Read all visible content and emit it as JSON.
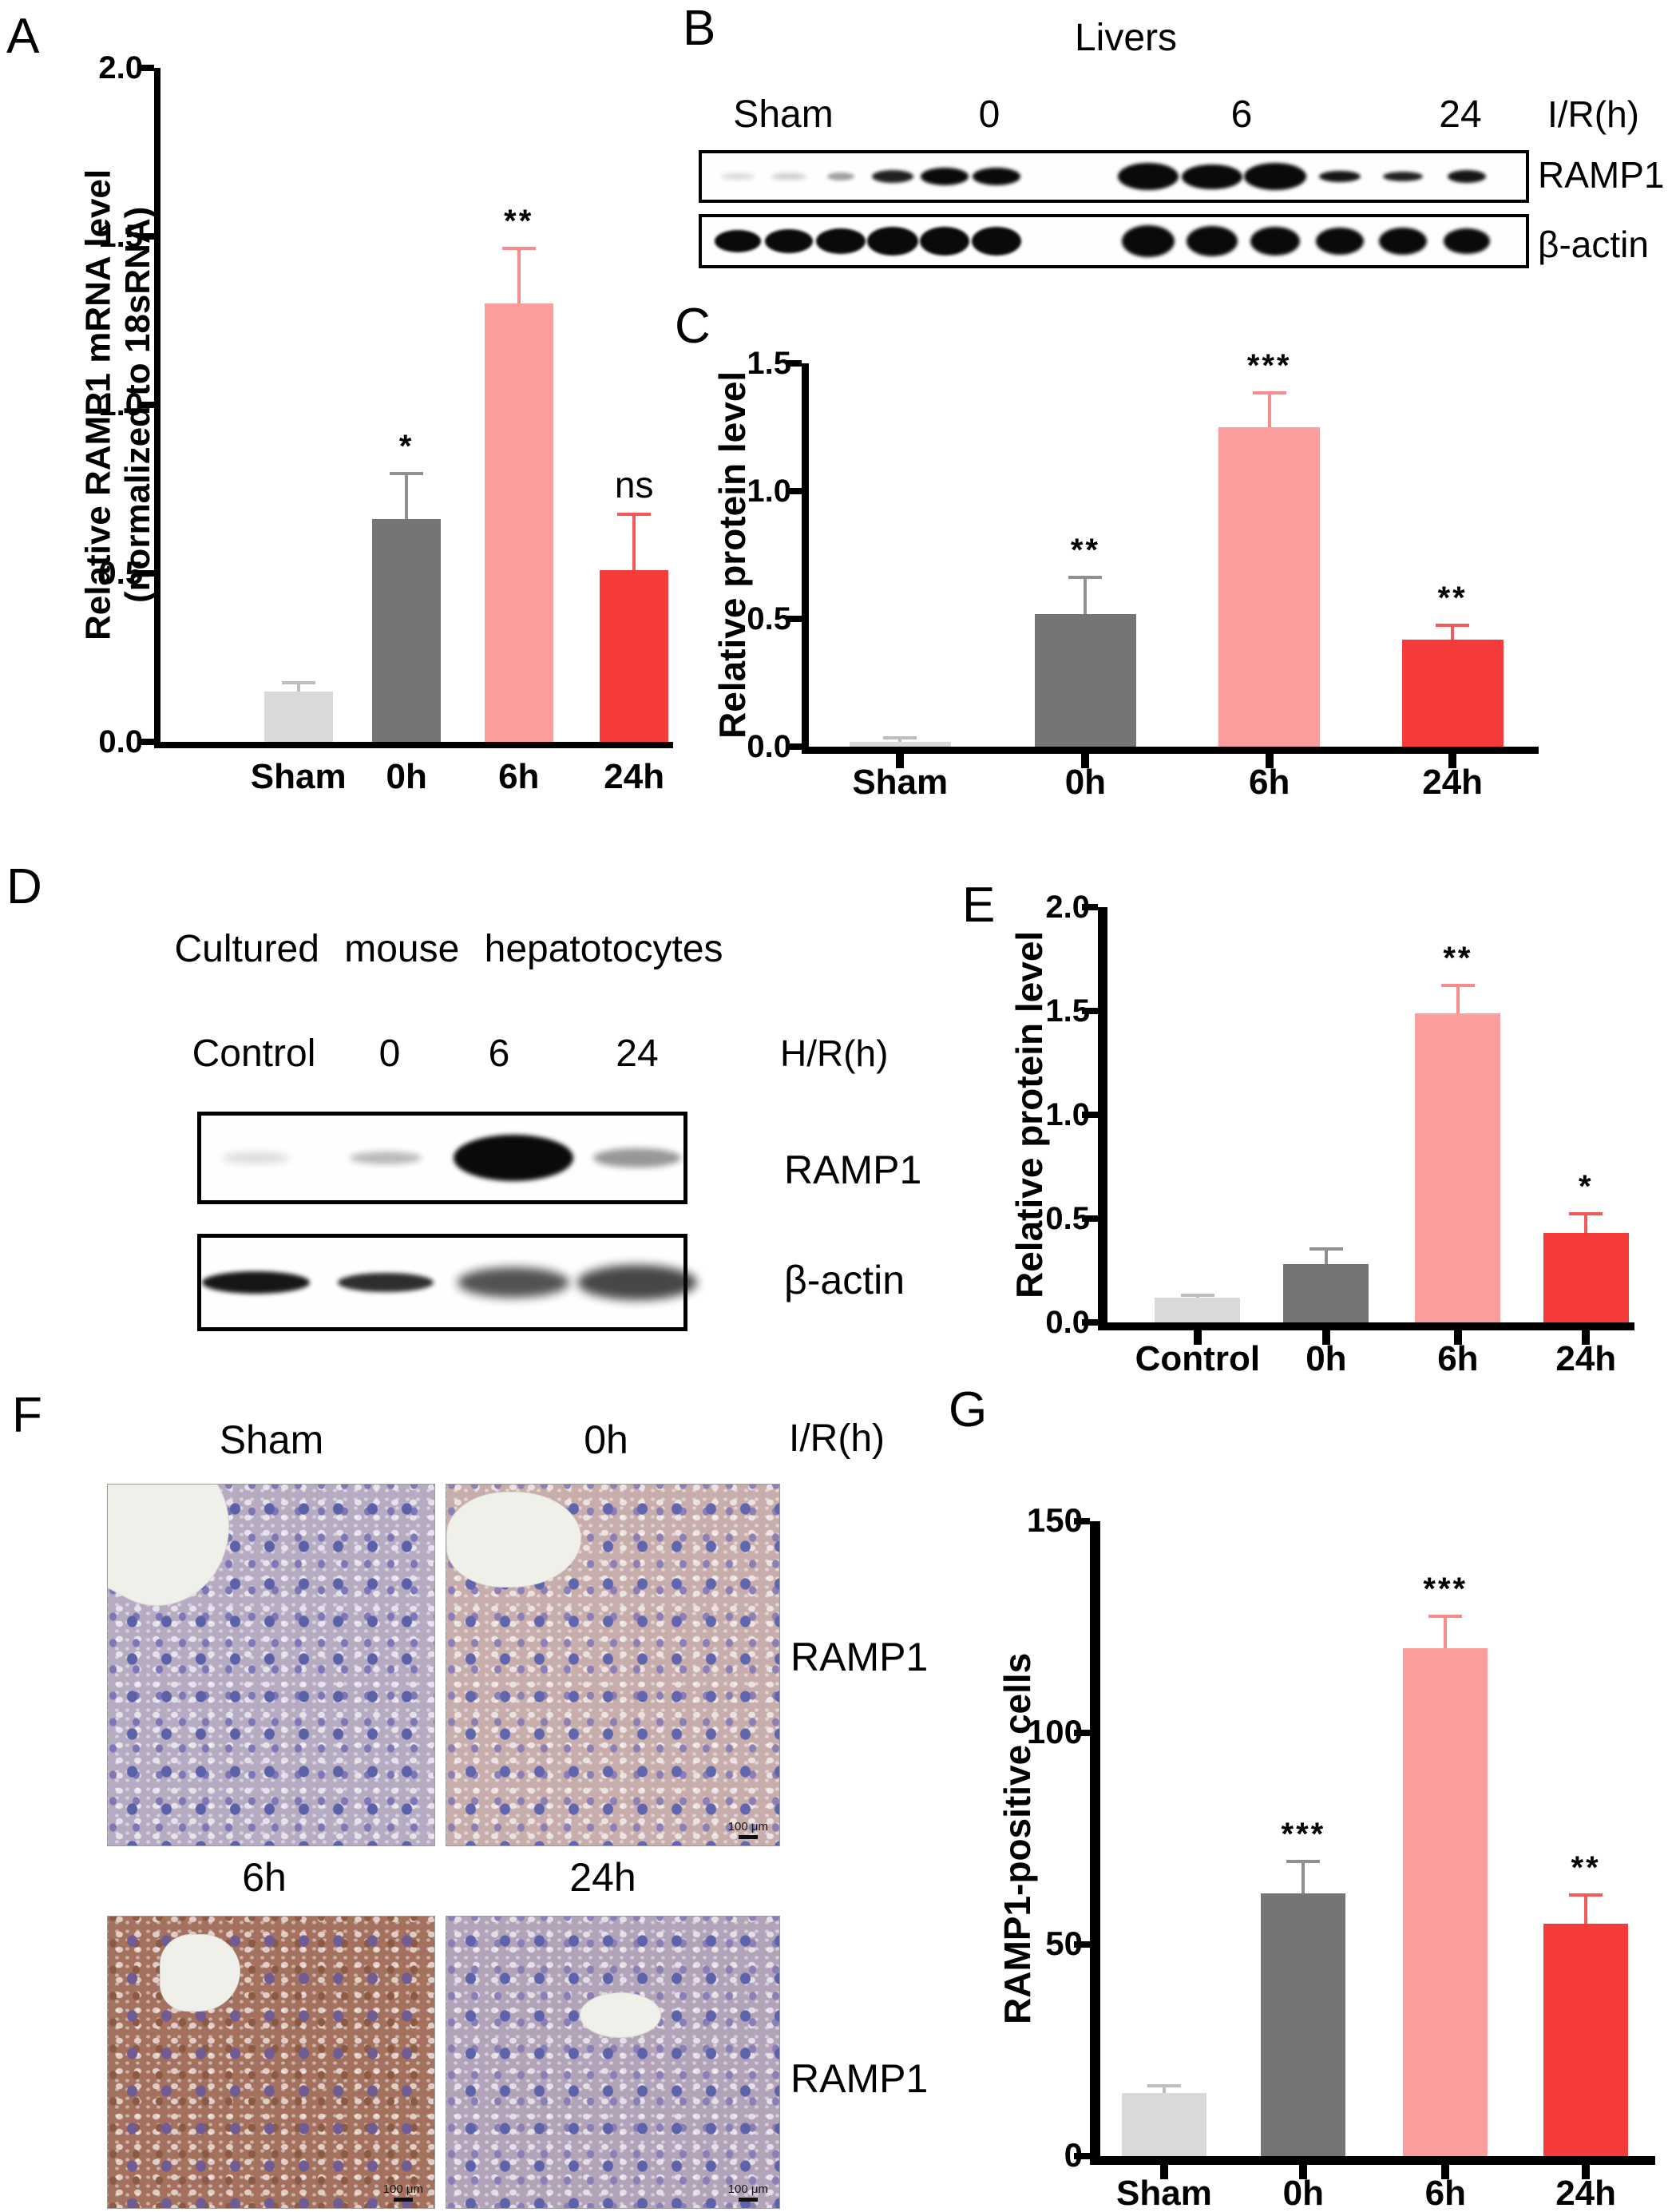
{
  "panels": {
    "A": "A",
    "B": "B",
    "C": "C",
    "D": "D",
    "E": "E",
    "F": "F",
    "G": "G"
  },
  "chart_data": [
    {
      "id": "A",
      "type": "bar",
      "ylabel": "Relative RAMP1 mRNA level\n(normalized to 18sRNA)",
      "ymax": 2.0,
      "ylim": [
        0,
        2.0
      ],
      "yticks": [
        "0.0",
        "0.5",
        "1.0",
        "1.5",
        "2.0"
      ],
      "categories": [
        "Sham",
        "0h",
        "6h",
        "24h"
      ],
      "values": [
        0.15,
        0.66,
        1.3,
        0.51
      ],
      "errors": [
        0.03,
        0.14,
        0.17,
        0.17
      ],
      "sig": [
        "",
        "*",
        "**",
        "ns"
      ],
      "colors": [
        "#d9d9d9",
        "#757575",
        "#fa9e9e",
        "#f63b3b"
      ],
      "err_colors": [
        "#bdbdbd",
        "#8f8f8f",
        "#f88b8b",
        "#f4595a"
      ],
      "grid": false,
      "legend": false
    },
    {
      "id": "C",
      "type": "bar",
      "ylabel": "Relative protein level",
      "ymax": 1.5,
      "ylim": [
        0,
        1.5
      ],
      "yticks": [
        "0.0",
        "0.5",
        "1.0",
        "1.5"
      ],
      "categories": [
        "Sham",
        "0h",
        "6h",
        "24h"
      ],
      "values": [
        0.02,
        0.52,
        1.25,
        0.42
      ],
      "errors": [
        0.02,
        0.15,
        0.14,
        0.06
      ],
      "sig": [
        "",
        "**",
        "***",
        "**"
      ],
      "colors": [
        "#d9d9d9",
        "#757575",
        "#fa9e9e",
        "#f63b3b"
      ],
      "err_colors": [
        "#bdbdbd",
        "#8f8f8f",
        "#f88b8b",
        "#f4595a"
      ],
      "grid": false,
      "legend": false
    },
    {
      "id": "E",
      "type": "bar",
      "ylabel": "Relative protein level",
      "ymax": 2.0,
      "ylim": [
        0,
        2.0
      ],
      "yticks": [
        "0.0",
        "0.5",
        "1.0",
        "1.5",
        "2.0"
      ],
      "categories": [
        "Control",
        "0h",
        "6h",
        "24h"
      ],
      "values": [
        0.12,
        0.28,
        1.49,
        0.43
      ],
      "errors": [
        0.02,
        0.08,
        0.14,
        0.1
      ],
      "sig": [
        "",
        "",
        "**",
        "*"
      ],
      "colors": [
        "#d9d9d9",
        "#757575",
        "#fa9e9e",
        "#f63b3b"
      ],
      "err_colors": [
        "#bdbdbd",
        "#8f8f8f",
        "#f88b8b",
        "#f4595a"
      ],
      "grid": false,
      "legend": false
    },
    {
      "id": "G",
      "type": "bar",
      "ylabel": "RAMP1-positive cells",
      "ymax": 150,
      "ylim": [
        0,
        150
      ],
      "yticks": [
        "0",
        "50",
        "100",
        "150"
      ],
      "categories": [
        "Sham",
        "0h",
        "6h",
        "24h"
      ],
      "values": [
        15,
        62,
        120,
        55
      ],
      "errors": [
        2,
        8,
        8,
        7
      ],
      "sig": [
        "",
        "***",
        "***",
        "**"
      ],
      "colors": [
        "#d9d9d9",
        "#757575",
        "#fa9e9e",
        "#f63b3b"
      ],
      "err_colors": [
        "#bdbdbd",
        "#8f8f8f",
        "#f88b8b",
        "#f4595a"
      ],
      "grid": false,
      "legend": false
    }
  ],
  "panel_b": {
    "title": "Livers",
    "lane_labels": [
      "Sham",
      "0",
      "6",
      "24"
    ],
    "axis_label": "I/R(h)",
    "row_labels": [
      "RAMP1",
      "β-actin"
    ],
    "ramp1_bands": [
      {
        "x": 0.044,
        "w": 42,
        "h": 8,
        "o": 0.15,
        "f": 3
      },
      {
        "x": 0.106,
        "w": 44,
        "h": 8,
        "o": 0.2,
        "f": 3
      },
      {
        "x": 0.169,
        "w": 34,
        "h": 10,
        "o": 0.38,
        "f": 2
      },
      {
        "x": 0.232,
        "w": 52,
        "h": 16,
        "o": 0.9,
        "f": 2
      },
      {
        "x": 0.295,
        "w": 60,
        "h": 22,
        "o": 1,
        "f": 2
      },
      {
        "x": 0.358,
        "w": 60,
        "h": 22,
        "o": 1,
        "f": 2
      },
      {
        "x": 0.542,
        "w": 76,
        "h": 34,
        "o": 1,
        "f": 2
      },
      {
        "x": 0.619,
        "w": 76,
        "h": 31,
        "o": 1,
        "f": 2
      },
      {
        "x": 0.696,
        "w": 78,
        "h": 34,
        "o": 1,
        "f": 2
      },
      {
        "x": 0.774,
        "w": 52,
        "h": 14,
        "o": 0.95,
        "f": 2
      },
      {
        "x": 0.851,
        "w": 50,
        "h": 12,
        "o": 0.9,
        "f": 2
      },
      {
        "x": 0.928,
        "w": 48,
        "h": 16,
        "o": 0.95,
        "f": 2
      }
    ],
    "actin_bands": [
      {
        "x": 0.044,
        "w": 58,
        "h": 28,
        "o": 1,
        "f": 1.5
      },
      {
        "x": 0.106,
        "w": 60,
        "h": 30,
        "o": 1,
        "f": 1.5
      },
      {
        "x": 0.169,
        "w": 62,
        "h": 32,
        "o": 1,
        "f": 1.5
      },
      {
        "x": 0.232,
        "w": 64,
        "h": 36,
        "o": 1,
        "f": 1.5
      },
      {
        "x": 0.295,
        "w": 62,
        "h": 36,
        "o": 1,
        "f": 1.5
      },
      {
        "x": 0.358,
        "w": 62,
        "h": 36,
        "o": 1,
        "f": 1.5
      },
      {
        "x": 0.542,
        "w": 66,
        "h": 40,
        "o": 1,
        "f": 2
      },
      {
        "x": 0.619,
        "w": 64,
        "h": 38,
        "o": 1,
        "f": 2
      },
      {
        "x": 0.696,
        "w": 62,
        "h": 36,
        "o": 1,
        "f": 2
      },
      {
        "x": 0.774,
        "w": 60,
        "h": 34,
        "o": 1,
        "f": 2
      },
      {
        "x": 0.851,
        "w": 60,
        "h": 34,
        "o": 1,
        "f": 2
      },
      {
        "x": 0.928,
        "w": 58,
        "h": 32,
        "o": 1,
        "f": 2
      }
    ]
  },
  "panel_d": {
    "title": "Cultured mouse hepatotocytes",
    "lane_labels": [
      "Control",
      "0",
      "6",
      "24"
    ],
    "axis_label": "H/R(h)",
    "row_labels": [
      "RAMP1",
      "β-actin"
    ],
    "ramp1_bands": [
      {
        "x": 0.113,
        "w": 85,
        "h": 14,
        "o": 0.14,
        "f": 5
      },
      {
        "x": 0.382,
        "w": 90,
        "h": 16,
        "o": 0.28,
        "f": 4
      },
      {
        "x": 0.647,
        "w": 150,
        "h": 58,
        "o": 1,
        "f": 3
      },
      {
        "x": 0.904,
        "w": 110,
        "h": 24,
        "o": 0.42,
        "f": 4
      }
    ],
    "actin_bands": [
      {
        "x": 0.113,
        "w": 135,
        "h": 28,
        "o": 0.95,
        "f": 3
      },
      {
        "x": 0.382,
        "w": 120,
        "h": 24,
        "o": 0.85,
        "f": 3
      },
      {
        "x": 0.647,
        "w": 140,
        "h": 38,
        "o": 0.7,
        "f": 6
      },
      {
        "x": 0.904,
        "w": 150,
        "h": 44,
        "o": 0.75,
        "f": 6
      }
    ]
  },
  "panel_f": {
    "column_labels_top": [
      "Sham",
      "0h"
    ],
    "column_labels_bottom": [
      "6h",
      "24h"
    ],
    "axis_label": "I/R(h)",
    "row_labels": [
      "RAMP1",
      "RAMP1"
    ],
    "scale_bar_label": "100 μm",
    "micrographs": [
      {
        "id": "sham",
        "label": "Sham",
        "base": "#b7abc2",
        "nuclei": "#5a61a8",
        "nuclei2": "#7d77b8",
        "scale_bar": false
      },
      {
        "id": "0h",
        "label": "0h",
        "base": "#c7aeac",
        "nuclei": "#6066ae",
        "nuclei2": "#8b7fb5",
        "scale_bar": true
      },
      {
        "id": "6h",
        "label": "6h",
        "base": "#a3715d",
        "nuclei": "#6f5c94",
        "nuclei2": "#8a5a44",
        "scale_bar": true
      },
      {
        "id": "24h",
        "label": "24h",
        "base": "#b2a3b8",
        "nuclei": "#5d63aa",
        "nuclei2": "#897fb6",
        "scale_bar": true
      }
    ]
  }
}
